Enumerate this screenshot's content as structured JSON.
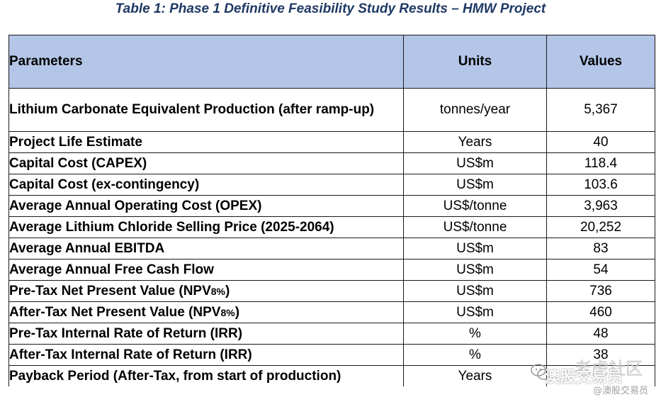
{
  "caption": "Table 1: Phase 1 Definitive Feasibility Study Results – HMW Project",
  "table": {
    "headers": {
      "parameters": "Parameters",
      "units": "Units",
      "values": "Values"
    },
    "rows": [
      {
        "parameter": "Lithium Carbonate Equivalent Production (after ramp-up)",
        "units": "tonnes/year",
        "value": "5,367"
      },
      {
        "parameter": "Project Life Estimate",
        "units": "Years",
        "value": "40"
      },
      {
        "parameter": "Capital Cost (CAPEX)",
        "units": "US$m",
        "value": "118.4"
      },
      {
        "parameter": "Capital Cost (ex-contingency)",
        "units": "US$m",
        "value": "103.6"
      },
      {
        "parameter": "Average Annual Operating Cost (OPEX)",
        "units": "US$/tonne",
        "value": "3,963"
      },
      {
        "parameter": "Average Lithium Chloride Selling Price (2025-2064)",
        "units": "US$/tonne",
        "value": "20,252"
      },
      {
        "parameter": "Average Annual EBITDA",
        "units": "US$m",
        "value": "83"
      },
      {
        "parameter": "Average Annual Free Cash Flow",
        "units": "US$m",
        "value": "54"
      },
      {
        "parameter": "Pre-Tax Net Present Value (NPV",
        "parameter_sub": "8%",
        "parameter_tail": ")",
        "units": "US$m",
        "value": "736"
      },
      {
        "parameter": "After-Tax Net Present Value (NPV",
        "parameter_sub": "8%",
        "parameter_tail": ")",
        "units": "US$m",
        "value": "460"
      },
      {
        "parameter": "Pre-Tax Internal Rate of Return (IRR)",
        "units": "%",
        "value": "48"
      },
      {
        "parameter": "After-Tax Internal Rate of Return (IRR)",
        "units": "%",
        "value": "38"
      },
      {
        "parameter": "Payback Period (After-Tax, from start of production)",
        "units": "Years",
        "value": ""
      }
    ]
  },
  "watermark": {
    "line1": "老虎社区",
    "line2": "澳股交易员",
    "line3": "@澳股交易员",
    "icon": "wechat-icon"
  }
}
